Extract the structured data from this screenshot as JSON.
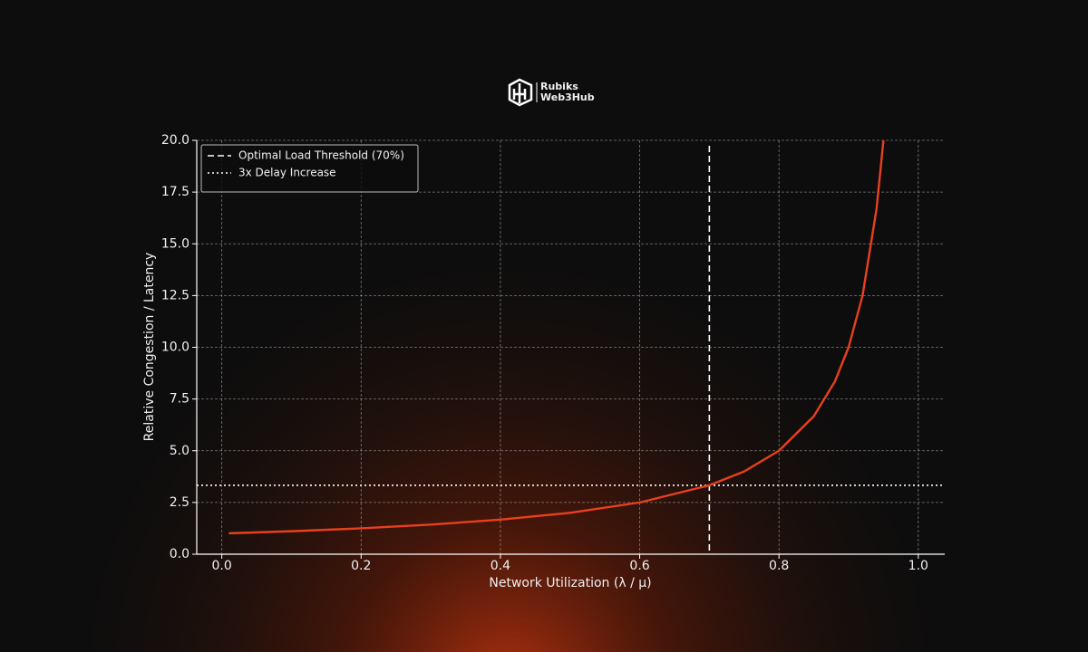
{
  "brand": {
    "line1": "Rubiks",
    "line2": "Web3Hub"
  },
  "chart_data": {
    "type": "line",
    "xlabel": "Network Utilization (λ / μ)",
    "ylabel": "Relative Congestion / Latency",
    "x": [
      0.01,
      0.1,
      0.2,
      0.3,
      0.4,
      0.5,
      0.6,
      0.7,
      0.75,
      0.8,
      0.85,
      0.88,
      0.9,
      0.92,
      0.94,
      0.95
    ],
    "series": [
      {
        "color": "#e8401c",
        "values": [
          1.01,
          1.11,
          1.25,
          1.43,
          1.67,
          2,
          2.5,
          3.33,
          4,
          5,
          6.67,
          8.33,
          10,
          12.5,
          16.67,
          20
        ]
      }
    ],
    "reference_lines": [
      {
        "name": "Optimal Load Threshold (70%)",
        "orientation": "vertical",
        "value": 0.7,
        "style": "dashed",
        "color": "#ffffff"
      },
      {
        "name": "3x Delay Increase",
        "orientation": "horizontal",
        "value": 3.33,
        "style": "dotted",
        "color": "#ffffff"
      }
    ],
    "xlim": [
      -0.036,
      1.038
    ],
    "ylim": [
      0,
      20
    ],
    "xticks": [
      {
        "value": 0,
        "label": "0.0"
      },
      0.2,
      0.4,
      0.6,
      0.8,
      {
        "value": 1,
        "label": "1.0"
      }
    ],
    "yticks": [
      {
        "value": 0,
        "label": "0.0"
      },
      2.5,
      {
        "value": 5,
        "label": "5.0"
      },
      7.5,
      {
        "value": 10,
        "label": "10.0"
      },
      12.5,
      {
        "value": 15,
        "label": "15.0"
      },
      17.5,
      {
        "value": 20,
        "label": "20.0"
      }
    ],
    "grid": true,
    "legend": "upper left"
  }
}
